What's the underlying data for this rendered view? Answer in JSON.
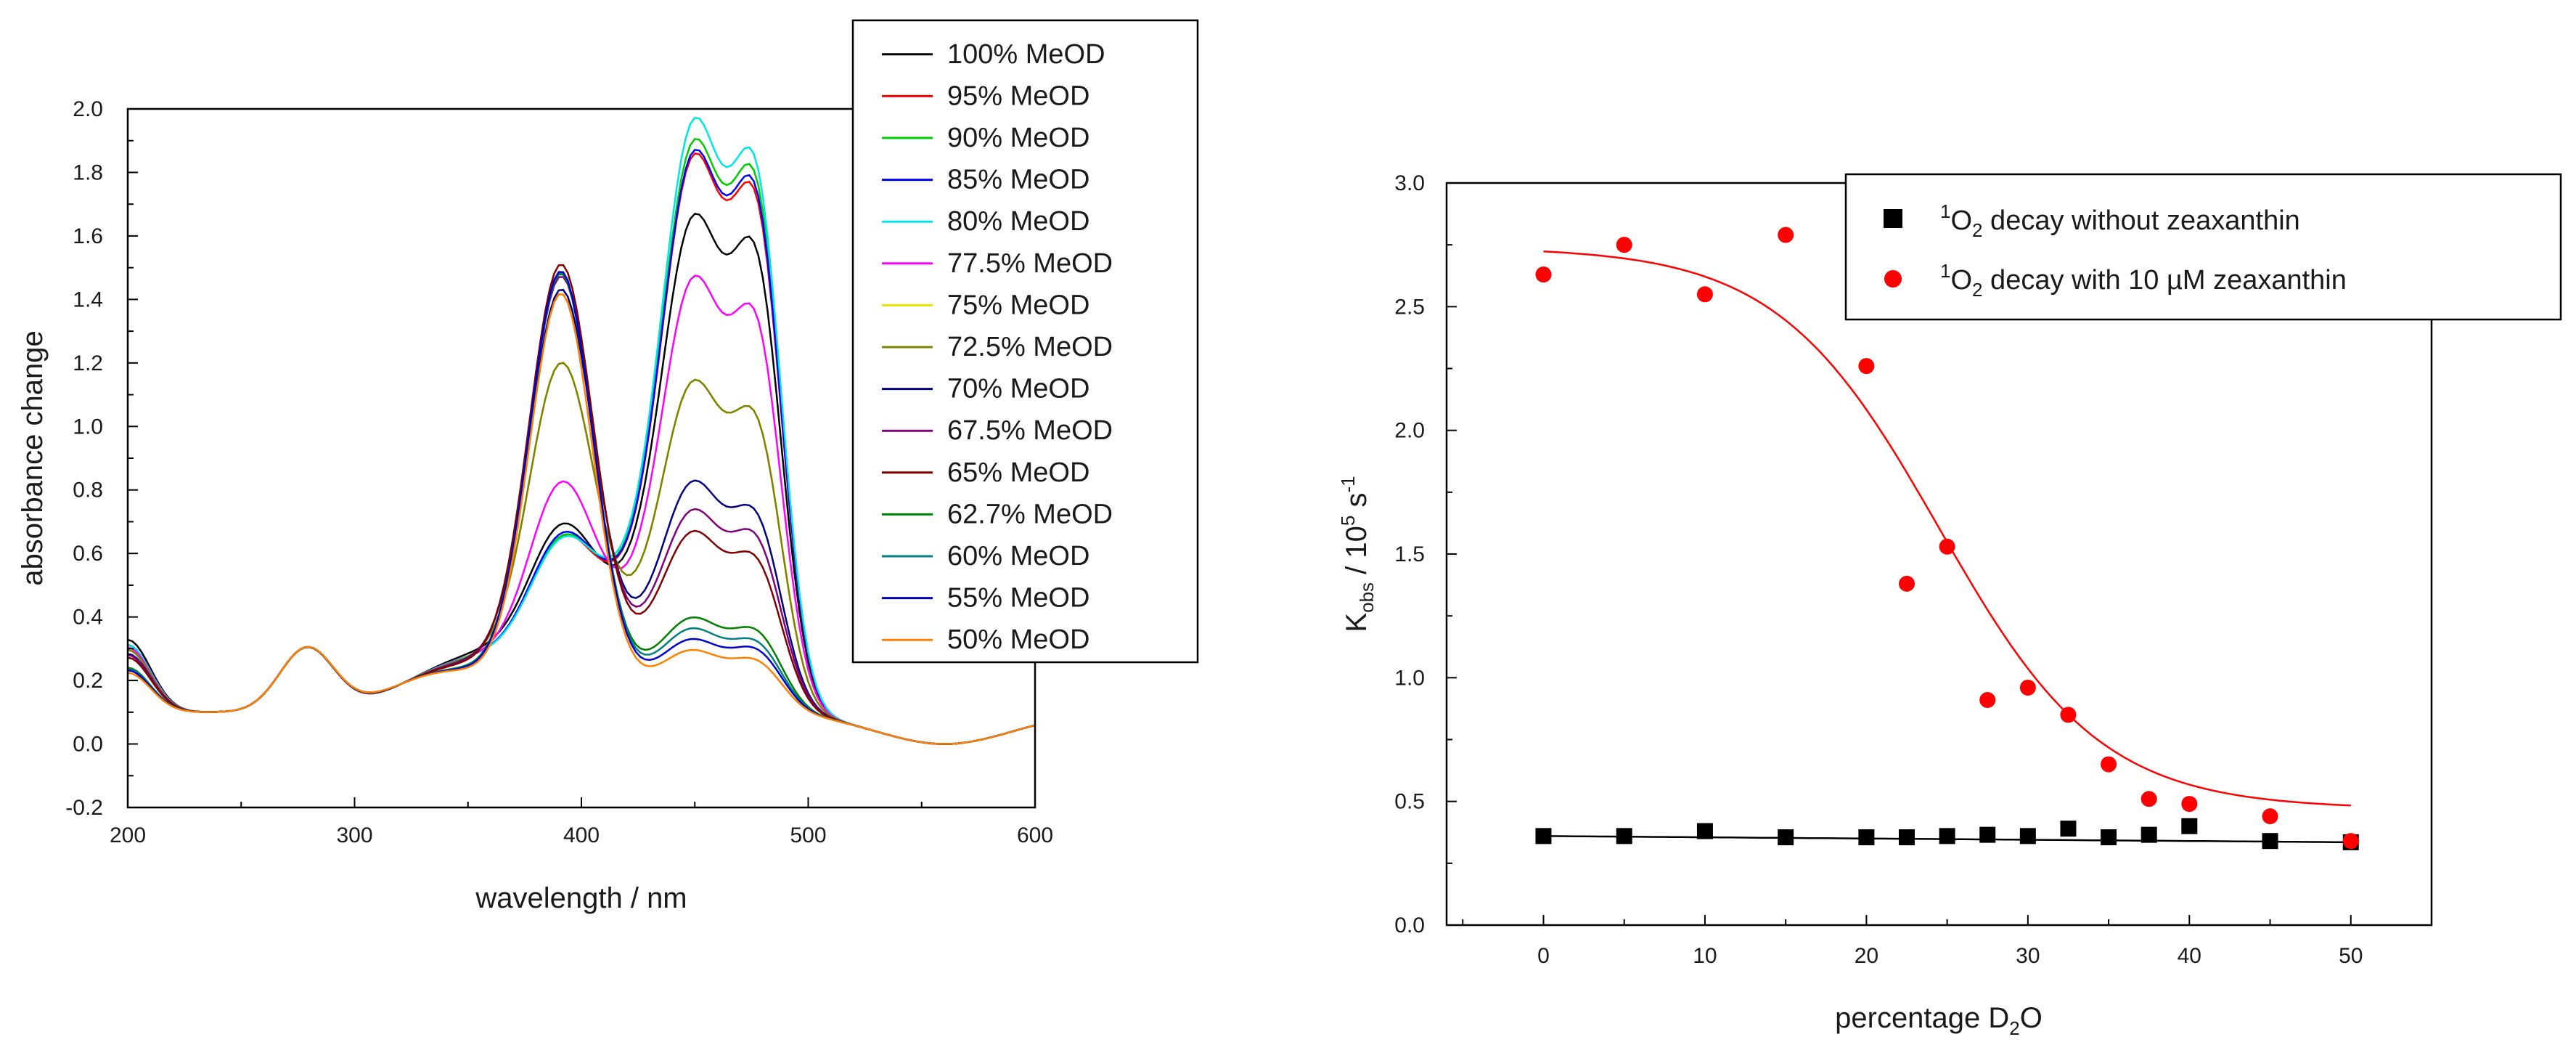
{
  "chart_data": [
    {
      "type": "line",
      "xlabel": "wavelength / nm",
      "ylabel": "absorbance change",
      "xlim": [
        200,
        600
      ],
      "ylim": [
        -0.2,
        2.0
      ],
      "x_ticks": [
        "200",
        "300",
        "400",
        "500",
        "600"
      ],
      "y_ticks": [
        "-0.2",
        "0.0",
        "0.2",
        "0.4",
        "0.6",
        "0.8",
        "1.0",
        "1.2",
        "1.4",
        "1.6",
        "1.8",
        "2.0"
      ],
      "legend_position": "top-right",
      "series": [
        {
          "name": "100% MeOD",
          "color": "#000000",
          "p1": 0.45,
          "p2": 1.52,
          "p3": 1.34,
          "s": 0.64
        },
        {
          "name": "95% MeOD",
          "color": "#ff0000",
          "p1": 0.42,
          "p2": 1.69,
          "p3": 1.48,
          "s": 0.56
        },
        {
          "name": "90% MeOD",
          "color": "#00cc00",
          "p1": 0.42,
          "p2": 1.73,
          "p3": 1.53,
          "s": 0.56
        },
        {
          "name": "85% MeOD",
          "color": "#0000ff",
          "p1": 0.43,
          "p2": 1.7,
          "p3": 1.5,
          "s": 0.56
        },
        {
          "name": "80% MeOD",
          "color": "#00e5e5",
          "p1": 0.41,
          "p2": 1.79,
          "p3": 1.57,
          "s": 0.56
        },
        {
          "name": "77.5% MeOD",
          "color": "#ff00ff",
          "p1": 0.62,
          "p2": 1.35,
          "p3": 1.16,
          "s": 0.52
        },
        {
          "name": "75% MeOD",
          "color": "#e5e500",
          "p1": 1.02,
          "p2": 1.06,
          "p3": 0.89,
          "s": 0.48
        },
        {
          "name": "72.5% MeOD",
          "color": "#808000",
          "p1": 1.02,
          "p2": 1.06,
          "p3": 0.89,
          "s": 0.48
        },
        {
          "name": "70% MeOD",
          "color": "#000080",
          "p1": 1.28,
          "p2": 0.78,
          "p3": 0.63,
          "s": 0.42
        },
        {
          "name": "67.5% MeOD",
          "color": "#800080",
          "p1": 1.33,
          "p2": 0.7,
          "p3": 0.57,
          "s": 0.4
        },
        {
          "name": "65% MeOD",
          "color": "#800000",
          "p1": 1.38,
          "p2": 0.64,
          "p3": 0.51,
          "s": 0.36
        },
        {
          "name": "62.7% MeOD",
          "color": "#008000",
          "p1": 1.4,
          "p2": 0.4,
          "p3": 0.32,
          "s": 0.2
        },
        {
          "name": "60% MeOD",
          "color": "#008080",
          "p1": 1.41,
          "p2": 0.37,
          "p3": 0.29,
          "s": 0.18
        },
        {
          "name": "55% MeOD",
          "color": "#0000cc",
          "p1": 1.42,
          "p2": 0.34,
          "p3": 0.27,
          "s": 0.16
        },
        {
          "name": "50% MeOD",
          "color": "#ff8000",
          "p1": 1.36,
          "p2": 0.31,
          "p3": 0.24,
          "s": 0.12
        }
      ]
    },
    {
      "type": "scatter",
      "xlabel": "percentage D₂O",
      "ylabel": "Kobs / 10⁵ s⁻¹",
      "xlim": [
        -6,
        55
      ],
      "ylim": [
        0.0,
        3.0
      ],
      "x_ticks": [
        "0",
        "10",
        "20",
        "30",
        "40",
        "50"
      ],
      "y_ticks": [
        "0.0",
        "0.5",
        "1.0",
        "1.5",
        "2.0",
        "2.5",
        "3.0"
      ],
      "legend_position": "top-right",
      "series": [
        {
          "name": "¹O₂ decay without zeaxanthin",
          "legend_text": "O",
          "legend_sup": "1",
          "legend_sub": "2",
          "legend_rest": " decay without zeaxanthin",
          "marker": "square",
          "color": "#000000",
          "x": [
            0,
            5,
            10,
            15,
            20,
            22.5,
            25,
            27.5,
            30,
            32.5,
            35,
            37.5,
            40,
            45,
            50
          ],
          "y": [
            0.36,
            0.36,
            0.38,
            0.355,
            0.355,
            0.355,
            0.36,
            0.365,
            0.36,
            0.39,
            0.355,
            0.365,
            0.4,
            0.34,
            0.335
          ],
          "fit": {
            "a": 0.36,
            "b": 0.0005
          }
        },
        {
          "name": "¹O₂ decay with 10 µM zeaxanthin",
          "legend_text": "O",
          "legend_sup": "1",
          "legend_sub": "2",
          "legend_rest": " decay with 10 µM zeaxanthin",
          "marker": "circle",
          "color": "#ff0000",
          "x": [
            0,
            5,
            10,
            15,
            20,
            22.5,
            25,
            27.5,
            30,
            32.5,
            35,
            37.5,
            40,
            45,
            50
          ],
          "y": [
            2.63,
            2.75,
            2.55,
            2.79,
            2.26,
            1.38,
            1.53,
            0.91,
            0.96,
            0.85,
            0.65,
            0.51,
            0.49,
            0.44,
            0.34
          ],
          "fit": {
            "top": 2.74,
            "bottom": 0.47,
            "x0": 24.5,
            "k": 0.2
          }
        }
      ]
    }
  ]
}
